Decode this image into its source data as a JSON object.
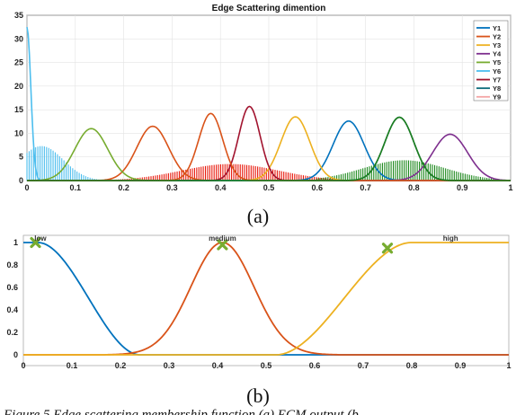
{
  "chart_data": [
    {
      "type": "line",
      "title": "Edge Scattering dimention",
      "xlim": [
        0,
        1
      ],
      "ylim": [
        0,
        35
      ],
      "xticks": [
        "0",
        "0.1",
        "0.2",
        "0.3",
        "0.4",
        "0.5",
        "0.6",
        "0.7",
        "0.8",
        "0.9",
        "1"
      ],
      "yticks": [
        "0",
        "5",
        "10",
        "15",
        "20",
        "25",
        "30",
        "35"
      ],
      "grid": true,
      "legend_position": "top-right",
      "series": [
        {
          "name": "Y1",
          "color": "#0072BD",
          "peak_x": 0.665,
          "peak_y": 12.6,
          "sigma": 0.032
        },
        {
          "name": "Y2",
          "color": "#D95319",
          "peak_x": 0.26,
          "peak_y": 11.5,
          "sigma": 0.033
        },
        {
          "name": "Y3",
          "color": "#EDB120",
          "peak_x": 0.555,
          "peak_y": 13.5,
          "sigma": 0.03
        },
        {
          "name": "Y4",
          "color": "#7E2F8E",
          "peak_x": 0.875,
          "peak_y": 9.8,
          "sigma": 0.036
        },
        {
          "name": "Y5",
          "color": "#77AC30",
          "peak_x": 0.133,
          "peak_y": 11.0,
          "sigma": 0.034
        },
        {
          "name": "Y6",
          "color": "#4DBEEE",
          "peak_x": 0.0,
          "peak_y": 32.5,
          "sigma": 0.008
        },
        {
          "name": "Y7",
          "color": "#A2142F",
          "peak_x": 0.46,
          "peak_y": 15.7,
          "sigma": 0.022
        },
        {
          "name": "Y8",
          "color": "#0B6B7A",
          "peak_x": 0.77,
          "peak_y": 13.4,
          "sigma": 0.03
        },
        {
          "name": "Y9",
          "color": "#F4A6A6",
          "peak_x": null,
          "peak_y": null,
          "sigma": null
        }
      ],
      "extra_curves": [
        {
          "color": "#D95319",
          "peak_x": 0.38,
          "peak_y": 14.2,
          "sigma": 0.025
        },
        {
          "color": "#1E7F1E",
          "peak_x": 0.77,
          "peak_y": 13.4,
          "sigma": 0.03
        }
      ],
      "histograms": [
        {
          "color": "#4DBEEE",
          "from": 0.0,
          "to": 0.17,
          "center": 0.03,
          "peak": 7.3,
          "sigma": 0.045
        },
        {
          "color": "#E8190C",
          "from": 0.18,
          "to": 0.64,
          "center": 0.42,
          "peak": 3.5,
          "sigma": 0.1
        },
        {
          "color": "#1E8A1E",
          "from": 0.6,
          "to": 0.97,
          "center": 0.78,
          "peak": 4.3,
          "sigma": 0.085
        }
      ]
    },
    {
      "type": "line",
      "xlim": [
        0,
        1
      ],
      "ylim": [
        0,
        1
      ],
      "xticks": [
        "0",
        "0.1",
        "0.2",
        "0.3",
        "0.4",
        "0.5",
        "0.6",
        "0.7",
        "0.8",
        "0.9",
        "1"
      ],
      "yticks": [
        "0",
        "0.2",
        "0.4",
        "0.6",
        "0.8",
        "1"
      ],
      "grid": false,
      "series": [
        {
          "name": "low",
          "color": "#0072BD",
          "shape": "z",
          "flat_until": 0.03,
          "zero_at": 0.24
        },
        {
          "name": "medium",
          "color": "#D95319",
          "shape": "gauss",
          "center": 0.41,
          "sigma": 0.065,
          "cut": 0.24
        },
        {
          "name": "high",
          "color": "#EDB120",
          "shape": "s",
          "zero_until": 0.52,
          "one_at": 0.8
        }
      ],
      "markers": [
        {
          "x": 0.025,
          "y": 1.0,
          "color": "#77AC30"
        },
        {
          "x": 0.41,
          "y": 0.98,
          "color": "#77AC30"
        },
        {
          "x": 0.75,
          "y": 0.95,
          "color": "#77AC30"
        }
      ],
      "label_x": {
        "low": 0.035,
        "medium": 0.41,
        "high": 0.88
      }
    }
  ],
  "labels": {
    "sub_a": "(a)",
    "sub_b": "(b)",
    "caption": "Figure 5 Edge scattering membership function (a) ECM output (b"
  }
}
